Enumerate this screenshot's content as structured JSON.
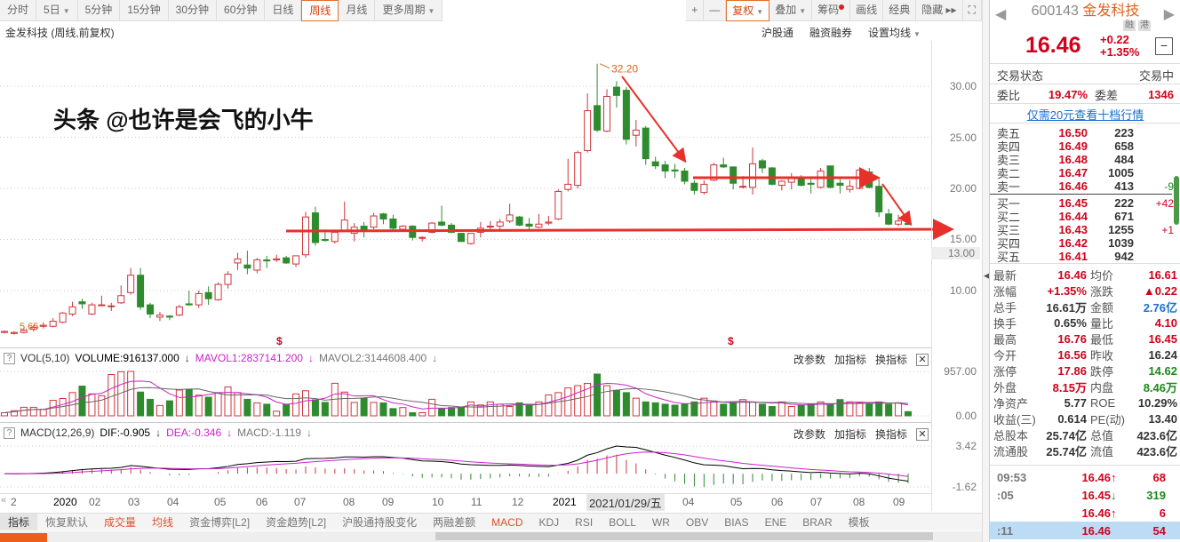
{
  "toolbar": {
    "periods": [
      {
        "label": "分时"
      },
      {
        "label": "5日",
        "dd": true
      },
      {
        "label": "5分钟"
      },
      {
        "label": "15分钟"
      },
      {
        "label": "30分钟"
      },
      {
        "label": "60分钟"
      },
      {
        "label": "日线"
      },
      {
        "label": "周线",
        "active": true
      },
      {
        "label": "月线"
      },
      {
        "label": "更多周期",
        "dd": true
      }
    ],
    "right": [
      {
        "label": "+"
      },
      {
        "label": "—"
      },
      {
        "label": "复权",
        "dd": true,
        "active": true
      },
      {
        "label": "叠加",
        "dd": true
      },
      {
        "label": "筹码",
        "dot": true
      },
      {
        "label": "画线"
      },
      {
        "label": "经典"
      },
      {
        "label": "隐藏 ▸▸"
      },
      {
        "label": "⛶"
      }
    ]
  },
  "chart": {
    "title": "金发科技 (周线,前复权)",
    "links": [
      "沪股通",
      "融资融券",
      "设置均线"
    ],
    "high_label": "32.20",
    "low_label": "5.65",
    "marker": "$",
    "yaxis": [
      "30.00",
      "25.00",
      "20.00",
      "15.00",
      "10.00"
    ],
    "cursor_price": "13.00",
    "colors": {
      "up": "#d0343c",
      "down": "#2e8b2e",
      "arrow": "#e8302a",
      "ma1": "#cc22cc",
      "ma2": "#666666"
    }
  },
  "chart_data": {
    "type": "candlestick",
    "ohlc_order": [
      "open",
      "high",
      "low",
      "close"
    ],
    "ylim": [
      5,
      33
    ],
    "candles": [
      [
        5.9,
        6.1,
        5.8,
        6.0
      ],
      [
        5.8,
        6.0,
        5.7,
        5.9
      ],
      [
        5.9,
        6.3,
        5.8,
        6.1
      ],
      [
        6.2,
        6.6,
        6.0,
        6.4
      ],
      [
        6.5,
        6.9,
        6.3,
        6.6
      ],
      [
        6.5,
        7.3,
        6.4,
        7.0
      ],
      [
        6.9,
        7.9,
        6.8,
        7.8
      ],
      [
        7.7,
        8.9,
        7.5,
        8.4
      ],
      [
        8.9,
        9.2,
        8.2,
        8.7
      ],
      [
        7.7,
        8.8,
        7.6,
        8.6
      ],
      [
        8.6,
        9.5,
        8.5,
        8.6
      ],
      [
        8.5,
        8.8,
        8.0,
        8.5
      ],
      [
        8.8,
        10.5,
        8.7,
        9.5
      ],
      [
        9.8,
        12.2,
        9.6,
        11.5
      ],
      [
        11.5,
        12.2,
        8.1,
        8.4
      ],
      [
        8.6,
        8.8,
        7.3,
        7.7
      ],
      [
        7.4,
        7.9,
        7.0,
        7.6
      ],
      [
        7.5,
        7.6,
        7.1,
        7.4
      ],
      [
        7.6,
        8.6,
        7.5,
        8.4
      ],
      [
        8.7,
        10.0,
        8.5,
        8.6
      ],
      [
        8.6,
        10.0,
        8.3,
        9.7
      ],
      [
        9.8,
        10.4,
        8.6,
        9.2
      ],
      [
        9.1,
        10.8,
        9.0,
        10.6
      ],
      [
        10.6,
        11.9,
        10.2,
        11.6
      ],
      [
        12.7,
        13.7,
        12.0,
        13.1
      ],
      [
        12.5,
        13.9,
        11.6,
        12.2
      ],
      [
        12.0,
        13.2,
        11.7,
        13.0
      ],
      [
        13.0,
        13.4,
        12.2,
        12.9
      ],
      [
        13.0,
        13.5,
        12.8,
        13.1
      ],
      [
        13.2,
        13.4,
        12.6,
        12.7
      ],
      [
        12.6,
        13.4,
        12.3,
        13.4
      ],
      [
        13.5,
        17.7,
        13.2,
        17.2
      ],
      [
        17.6,
        18.2,
        14.4,
        14.7
      ],
      [
        15.0,
        16.0,
        14.8,
        14.9
      ],
      [
        14.8,
        15.9,
        14.6,
        15.7
      ],
      [
        15.9,
        18.7,
        15.8,
        16.9
      ],
      [
        15.6,
        16.6,
        14.8,
        16.2
      ],
      [
        16.3,
        16.7,
        15.2,
        16.0
      ],
      [
        16.2,
        17.6,
        16.0,
        17.3
      ],
      [
        17.5,
        17.6,
        16.5,
        17.0
      ],
      [
        17.0,
        17.4,
        15.8,
        16.1
      ],
      [
        16.0,
        16.4,
        15.8,
        16.3
      ],
      [
        16.3,
        16.4,
        14.9,
        15.2
      ],
      [
        15.2,
        15.3,
        14.8,
        15.2
      ],
      [
        15.7,
        16.7,
        15.6,
        16.6
      ],
      [
        16.7,
        18.3,
        16.3,
        16.4
      ],
      [
        16.4,
        16.6,
        15.6,
        15.7
      ],
      [
        15.6,
        15.6,
        14.8,
        14.8
      ],
      [
        14.6,
        15.6,
        14.5,
        15.6
      ],
      [
        15.7,
        16.7,
        15.2,
        16.1
      ],
      [
        16.3,
        16.8,
        15.8,
        16.3
      ],
      [
        16.3,
        17.0,
        15.9,
        16.7
      ],
      [
        16.8,
        18.5,
        16.6,
        17.4
      ],
      [
        17.2,
        17.3,
        16.3,
        16.4
      ],
      [
        16.5,
        17.1,
        16.0,
        16.3
      ],
      [
        16.2,
        17.5,
        16.1,
        16.5
      ],
      [
        16.6,
        17.3,
        16.4,
        16.7
      ],
      [
        17.0,
        19.9,
        16.9,
        19.7
      ],
      [
        19.9,
        22.9,
        19.7,
        20.4
      ],
      [
        20.3,
        23.7,
        20.0,
        23.5
      ],
      [
        23.7,
        29.3,
        23.5,
        27.6
      ],
      [
        28.1,
        32.2,
        25.5,
        25.7
      ],
      [
        25.6,
        29.7,
        25.5,
        29.0
      ],
      [
        29.9,
        30.5,
        27.9,
        29.1
      ],
      [
        29.6,
        29.9,
        24.3,
        24.8
      ],
      [
        25.2,
        26.7,
        24.1,
        25.7
      ],
      [
        25.9,
        26.1,
        22.3,
        22.9
      ],
      [
        22.6,
        23.1,
        21.9,
        22.2
      ],
      [
        22.3,
        22.7,
        21.0,
        21.7
      ],
      [
        21.8,
        22.4,
        21.0,
        21.7
      ],
      [
        21.7,
        22.0,
        20.4,
        20.7
      ],
      [
        20.5,
        20.8,
        19.4,
        19.8
      ],
      [
        19.6,
        20.8,
        19.4,
        20.4
      ],
      [
        20.8,
        22.5,
        20.7,
        22.3
      ],
      [
        22.3,
        23.0,
        22.0,
        22.1
      ],
      [
        22.1,
        22.1,
        19.9,
        20.5
      ],
      [
        20.2,
        21.2,
        20.0,
        20.2
      ],
      [
        20.1,
        24.0,
        19.4,
        22.4
      ],
      [
        22.7,
        22.9,
        21.5,
        22.0
      ],
      [
        22.0,
        22.1,
        20.3,
        20.4
      ],
      [
        20.3,
        20.8,
        19.8,
        20.7
      ],
      [
        20.6,
        21.5,
        19.9,
        21.0
      ],
      [
        21.0,
        21.3,
        20.2,
        20.3
      ],
      [
        20.5,
        20.9,
        19.5,
        20.4
      ],
      [
        20.1,
        22.0,
        20.0,
        21.7
      ],
      [
        22.2,
        22.2,
        20.0,
        20.1
      ],
      [
        20.5,
        20.9,
        19.5,
        20.3
      ],
      [
        19.9,
        20.8,
        19.6,
        20.2
      ],
      [
        20.0,
        22.0,
        19.9,
        21.8
      ],
      [
        21.6,
        22.0,
        20.0,
        20.1
      ],
      [
        20.2,
        21.0,
        17.2,
        17.7
      ],
      [
        17.5,
        18.0,
        16.4,
        16.5
      ],
      [
        16.5,
        17.4,
        16.3,
        16.8
      ],
      [
        16.56,
        16.76,
        16.45,
        16.46
      ]
    ],
    "volume": [
      67,
      111,
      184,
      184,
      139,
      334,
      373,
      501,
      640,
      473,
      434,
      890,
      950,
      957,
      512,
      356,
      223,
      323,
      556,
      568,
      445,
      401,
      501,
      623,
      501,
      356,
      278,
      250,
      100,
      250,
      473,
      540,
      345,
      289,
      701,
      512,
      289,
      373,
      289,
      278,
      156,
      178,
      67,
      67,
      356,
      156,
      178,
      178,
      300,
      234,
      300,
      250,
      200,
      280,
      220,
      300,
      450,
      500,
      600,
      650,
      700,
      900,
      650,
      550,
      500,
      380,
      300,
      280,
      250,
      230,
      250,
      300,
      380,
      320,
      250,
      280,
      350,
      300,
      250,
      200,
      300,
      200,
      220,
      250,
      300,
      250,
      350,
      300,
      280,
      250,
      300,
      250,
      280,
      90
    ],
    "xaxis_labels": [
      "2",
      "2020",
      "02",
      "03",
      "04",
      "05",
      "06",
      "07",
      "08",
      "09",
      "10",
      "11",
      "12",
      "2021",
      "2021/01/29/五",
      "04",
      "05",
      "06",
      "07",
      "08",
      "09"
    ]
  },
  "vol": {
    "name": "VOL(5,10)",
    "volume": "VOLUME:916137.000",
    "mavol1": "MAVOL1:2837141.200",
    "mavol2": "MAVOL2:3144608.400",
    "yaxis": [
      "957.00",
      "0.00"
    ]
  },
  "macd": {
    "name": "MACD(12,26,9)",
    "dif": "DIF:-0.905",
    "dea": "DEA:-0.346",
    "macd": "MACD:-1.119",
    "yaxis": [
      "3.42",
      "-1.62"
    ]
  },
  "panel_ops": [
    "改参数",
    "加指标",
    "换指标"
  ],
  "tabs": [
    {
      "label": "指标"
    },
    {
      "label": "恢复默认"
    },
    {
      "label": "成交量",
      "o": true
    },
    {
      "label": "均线",
      "o": true
    },
    {
      "label": "资金博弈[L2]"
    },
    {
      "label": "资金趋势[L2]"
    },
    {
      "label": "沪股通持股变化"
    },
    {
      "label": "两融差额"
    },
    {
      "label": "MACD",
      "o": true
    },
    {
      "label": "KDJ"
    },
    {
      "label": "RSI"
    },
    {
      "label": "BOLL"
    },
    {
      "label": "WR"
    },
    {
      "label": "OBV"
    },
    {
      "label": "BIAS"
    },
    {
      "label": "ENE"
    },
    {
      "label": "BRAR"
    },
    {
      "label": "模板"
    }
  ],
  "quote": {
    "code": "600143",
    "name": "金发科技",
    "badges": [
      "融",
      "港"
    ],
    "price": "16.46",
    "change": "+0.22",
    "pct": "+1.35%",
    "status_label": "交易状态",
    "status": "交易中",
    "wb_label": "委比",
    "wb": "19.47%",
    "wc_label": "委差",
    "wc": "1346",
    "link": "仅需20元查看十档行情",
    "asks": [
      [
        "卖五",
        "16.50",
        "223",
        ""
      ],
      [
        "卖四",
        "16.49",
        "658",
        ""
      ],
      [
        "卖三",
        "16.48",
        "484",
        ""
      ],
      [
        "卖二",
        "16.47",
        "1005",
        ""
      ],
      [
        "卖一",
        "16.46",
        "413",
        "-9"
      ]
    ],
    "bids": [
      [
        "买一",
        "16.45",
        "222",
        "+42"
      ],
      [
        "买二",
        "16.44",
        "671",
        ""
      ],
      [
        "买三",
        "16.43",
        "1255",
        "+1"
      ],
      [
        "买四",
        "16.42",
        "1039",
        ""
      ],
      [
        "买五",
        "16.41",
        "942",
        ""
      ]
    ],
    "stats": [
      [
        "最新",
        "16.46",
        "red",
        "均价",
        "16.61",
        "red"
      ],
      [
        "涨幅",
        "+1.35%",
        "red",
        "涨跌",
        "▲0.22",
        "red"
      ],
      [
        "总手",
        "16.61万",
        "blk",
        "金额",
        "2.76亿",
        "blue"
      ],
      [
        "换手",
        "0.65%",
        "blk",
        "量比",
        "4.10",
        "red"
      ],
      [
        "最高",
        "16.76",
        "red",
        "最低",
        "16.45",
        "red"
      ],
      [
        "今开",
        "16.56",
        "red",
        "昨收",
        "16.24",
        "blk"
      ],
      [
        "涨停",
        "17.86",
        "red",
        "跌停",
        "14.62",
        "grn"
      ],
      [
        "外盘",
        "8.15万",
        "red",
        "内盘",
        "8.46万",
        "grn"
      ],
      [
        "净资产",
        "5.77",
        "blk",
        "ROE",
        "10.29%",
        "blk"
      ],
      [
        "收益(三)",
        "0.614",
        "blk",
        "PE(动)",
        "13.40",
        "blk"
      ],
      [
        "总股本",
        "25.74亿",
        "blk",
        "总值",
        "423.6亿",
        "blk"
      ],
      [
        "流通股",
        "25.74亿",
        "blk",
        "流值",
        "423.6亿",
        "blk"
      ]
    ],
    "ticks": [
      [
        "09:53",
        "16.46",
        "↑",
        "68",
        "red"
      ],
      [
        ":05",
        "16.45",
        "↓",
        "319",
        "grn"
      ],
      [
        "",
        "16.46",
        "↑",
        "6",
        "red"
      ],
      [
        ":11",
        "16.46",
        "",
        "54",
        "red"
      ]
    ]
  },
  "watermark": "头条 @也许是会飞的小牛"
}
